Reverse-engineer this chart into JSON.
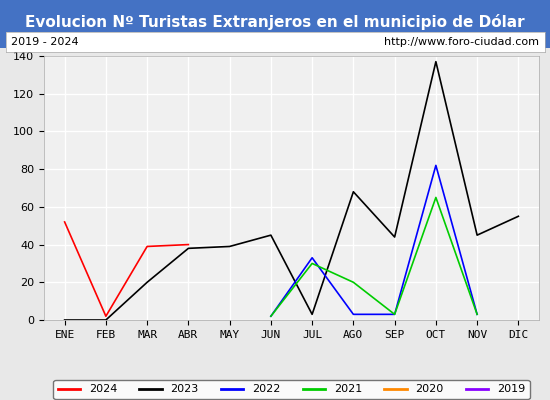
{
  "title": "Evolucion Nº Turistas Extranjeros en el municipio de Dólar",
  "subtitle_left": "2019 - 2024",
  "subtitle_right": "http://www.foro-ciudad.com",
  "months": [
    "ENE",
    "FEB",
    "MAR",
    "ABR",
    "MAY",
    "JUN",
    "JUL",
    "AGO",
    "SEP",
    "OCT",
    "NOV",
    "DIC"
  ],
  "series": {
    "2024": {
      "color": "#ff0000",
      "data": [
        52,
        2,
        39,
        40,
        null,
        null,
        null,
        null,
        null,
        null,
        null,
        null
      ]
    },
    "2023": {
      "color": "#000000",
      "data": [
        0,
        0,
        20,
        38,
        39,
        45,
        3,
        68,
        44,
        137,
        45,
        55
      ]
    },
    "2022": {
      "color": "#0000ff",
      "data": [
        null,
        null,
        null,
        null,
        null,
        2,
        33,
        3,
        3,
        82,
        3,
        null
      ]
    },
    "2021": {
      "color": "#00cc00",
      "data": [
        null,
        null,
        null,
        null,
        null,
        2,
        30,
        20,
        3,
        65,
        3,
        null
      ]
    },
    "2020": {
      "color": "#ff8800",
      "data": [
        null,
        null,
        null,
        null,
        null,
        null,
        null,
        null,
        null,
        null,
        null,
        null
      ]
    },
    "2019": {
      "color": "#8800ff",
      "data": [
        null,
        null,
        null,
        null,
        null,
        null,
        null,
        null,
        null,
        null,
        null,
        null
      ]
    }
  },
  "ylim": [
    0,
    140
  ],
  "yticks": [
    0,
    20,
    40,
    60,
    80,
    100,
    120,
    140
  ],
  "bg_title": "#4472c4",
  "bg_chart": "#e8e8e8",
  "bg_plot": "#f0f0f0",
  "grid_color": "#ffffff",
  "title_color": "#ffffff",
  "title_fontsize": 11,
  "subtitle_fontsize": 8,
  "tick_fontsize": 8
}
